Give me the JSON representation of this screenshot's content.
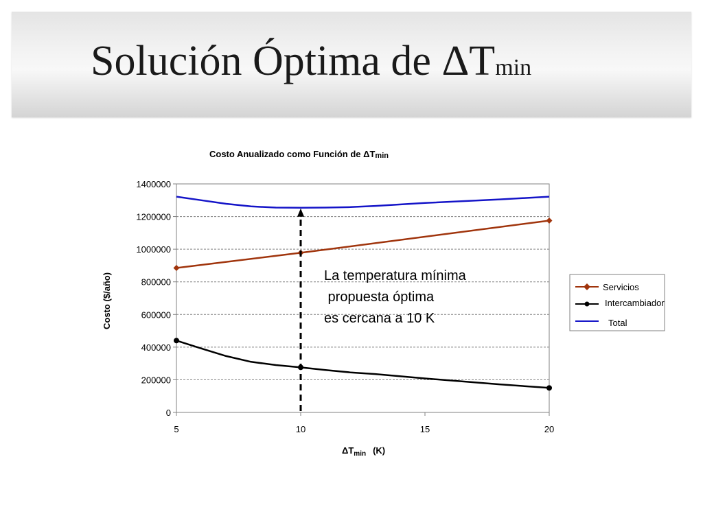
{
  "slide": {
    "title_main": "Solución Óptima de ΔT",
    "title_sub": "min"
  },
  "chart_data": {
    "type": "line",
    "title": "Costo Anualizado como Función de ΔT",
    "title_sub": "min",
    "xlabel": "ΔT",
    "xlabel_sub": "min",
    "xlabel_unit": "(K)",
    "ylabel": "Costo ($/año)",
    "xlim": [
      5,
      20
    ],
    "ylim": [
      0,
      1400000
    ],
    "x_ticks": [
      5,
      10,
      15,
      20
    ],
    "y_ticks": [
      0,
      200000,
      400000,
      600000,
      800000,
      1000000,
      1200000,
      1400000
    ],
    "grid": true,
    "legend_position": "right",
    "series": [
      {
        "name": "Servicios",
        "color": "#a0340c",
        "marker": "diamond",
        "x": [
          5,
          10,
          20
        ],
        "y": [
          885000,
          978000,
          1175000
        ]
      },
      {
        "name": "Intercambiador",
        "color": "#000000",
        "marker": "circle",
        "x": [
          5,
          6,
          7,
          8,
          9,
          10,
          11,
          12,
          13,
          15,
          18,
          20
        ],
        "y": [
          440000,
          392000,
          345000,
          310000,
          290000,
          276000,
          260000,
          245000,
          235000,
          208000,
          172000,
          150000
        ]
      },
      {
        "name": "Total",
        "color": "#1414c8",
        "marker": "none",
        "x": [
          5,
          6,
          7,
          8,
          9,
          10,
          11,
          12,
          13,
          15,
          18,
          20
        ],
        "y": [
          1322000,
          1300000,
          1278000,
          1262000,
          1255000,
          1254000,
          1255000,
          1258000,
          1265000,
          1283000,
          1305000,
          1322000
        ]
      }
    ],
    "marker_points": {
      "Servicios": [
        5,
        10,
        20
      ],
      "Intercambiador": [
        5,
        10,
        20
      ]
    },
    "annotation": {
      "lines": [
        "La temperatura mínima",
        " propuesta óptima",
        "es cercana a 10 K"
      ],
      "arrow_x": 10
    }
  },
  "colors": {
    "title_bar": "#e8e8e8",
    "grid": "#808080"
  }
}
